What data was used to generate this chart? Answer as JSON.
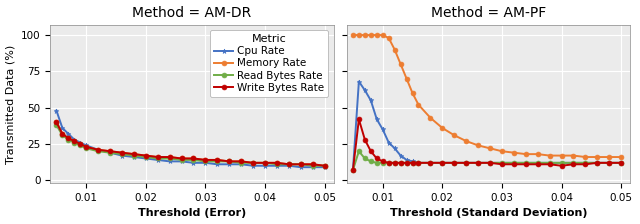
{
  "title_left": "Method = AM-DR",
  "title_right": "Method = AM-PF",
  "ylabel": "Transmitted Data (%)",
  "xlabel_left": "Threshold (Error)",
  "xlabel_right": "Threshold (Standard Deviation)",
  "legend_title": "Metric",
  "legend_labels": [
    "Cpu Rate",
    "Memory Rate",
    "Read Bytes Rate",
    "Write Bytes Rate"
  ],
  "colors": [
    "#4472c4",
    "#ed7d31",
    "#70ad47",
    "#c00000"
  ],
  "markers": [
    "*",
    "o",
    "o",
    "o"
  ],
  "am_dr_x": [
    0.005,
    0.006,
    0.007,
    0.008,
    0.009,
    0.01,
    0.012,
    0.014,
    0.016,
    0.018,
    0.02,
    0.022,
    0.024,
    0.026,
    0.028,
    0.03,
    0.032,
    0.034,
    0.036,
    0.038,
    0.04,
    0.042,
    0.044,
    0.046,
    0.048,
    0.05
  ],
  "am_dr_cpu": [
    48,
    36,
    32,
    28,
    26,
    24,
    21,
    19,
    17,
    16,
    15,
    14,
    13,
    13,
    12,
    12,
    11,
    11,
    11,
    10,
    10,
    10,
    10,
    9,
    9,
    9
  ],
  "am_dr_mem": [
    40,
    32,
    29,
    27,
    25,
    23,
    21,
    20,
    19,
    18,
    17,
    16,
    16,
    15,
    15,
    14,
    14,
    13,
    13,
    12,
    12,
    12,
    11,
    11,
    11,
    10
  ],
  "am_dr_read": [
    38,
    31,
    28,
    26,
    24,
    22,
    20,
    19,
    18,
    17,
    16,
    15,
    15,
    14,
    14,
    13,
    13,
    13,
    12,
    12,
    12,
    11,
    11,
    11,
    10,
    10
  ],
  "am_dr_write": [
    40,
    32,
    29,
    27,
    25,
    23,
    21,
    20,
    19,
    18,
    17,
    16,
    16,
    15,
    15,
    14,
    14,
    13,
    13,
    12,
    12,
    12,
    11,
    11,
    11,
    10
  ],
  "am_pf_x": [
    0.005,
    0.006,
    0.007,
    0.008,
    0.009,
    0.01,
    0.011,
    0.012,
    0.013,
    0.014,
    0.015,
    0.016,
    0.018,
    0.02,
    0.022,
    0.024,
    0.026,
    0.028,
    0.03,
    0.032,
    0.034,
    0.036,
    0.038,
    0.04,
    0.042,
    0.044,
    0.046,
    0.048,
    0.05
  ],
  "am_pf_cpu": [
    7,
    68,
    62,
    55,
    42,
    35,
    26,
    22,
    17,
    14,
    13,
    12,
    12,
    12,
    12,
    12,
    12,
    12,
    12,
    12,
    12,
    12,
    12,
    12,
    12,
    12,
    12,
    12,
    12
  ],
  "am_pf_mem": [
    100,
    100,
    100,
    100,
    100,
    100,
    98,
    90,
    80,
    70,
    60,
    52,
    43,
    36,
    31,
    27,
    24,
    22,
    20,
    19,
    18,
    18,
    17,
    17,
    17,
    16,
    16,
    16,
    16
  ],
  "am_pf_read": [
    7,
    20,
    15,
    13,
    12,
    12,
    12,
    12,
    12,
    12,
    12,
    12,
    12,
    12,
    12,
    12,
    12,
    12,
    12,
    12,
    12,
    12,
    12,
    12,
    12,
    12,
    12,
    12,
    12
  ],
  "am_pf_write": [
    7,
    42,
    28,
    20,
    15,
    13,
    12,
    12,
    12,
    12,
    12,
    12,
    12,
    12,
    12,
    12,
    12,
    12,
    11,
    11,
    11,
    11,
    11,
    10,
    11,
    11,
    12,
    12,
    12
  ],
  "xlim_left": [
    0.004,
    0.0515
  ],
  "xlim_right": [
    0.004,
    0.0515
  ],
  "ylim": [
    -2,
    107
  ],
  "yticks": [
    0,
    25,
    50,
    75,
    100
  ],
  "xticks_left": [
    0.01,
    0.02,
    0.03,
    0.04,
    0.05
  ],
  "xticks_right": [
    0.01,
    0.02,
    0.03,
    0.04,
    0.05
  ],
  "bg_color": "#ebebeb",
  "grid_color": "#ffffff",
  "title_fontsize": 10,
  "label_fontsize": 8,
  "tick_fontsize": 7.5,
  "legend_fontsize": 7.5,
  "legend_title_fontsize": 8
}
